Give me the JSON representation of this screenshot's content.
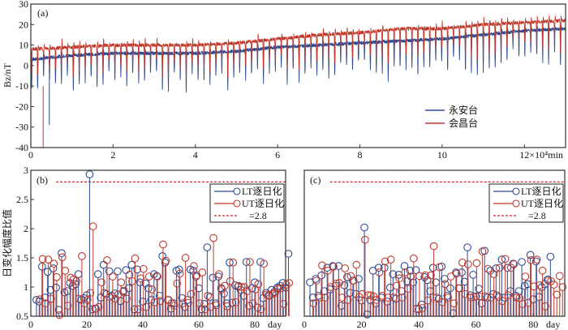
{
  "colors": {
    "blue": "#2b4a92",
    "red": "#c0392b",
    "dashed": "#e02020",
    "axis": "#333333"
  },
  "chart_data": [
    {
      "panel": "a",
      "type": "line",
      "panel_label": "(a)",
      "title": "",
      "xlabel": "×10⁴min",
      "ylabel": "Bz/nT",
      "xlim": [
        0,
        13
      ],
      "ylim": [
        -40,
        30
      ],
      "xticks": [
        0,
        2,
        4,
        6,
        8,
        10,
        12
      ],
      "xtick_labels": [
        "0",
        "2",
        "4",
        "6",
        "8",
        "10",
        "12×10⁴min"
      ],
      "yticks": [
        -40,
        -30,
        -20,
        -10,
        0,
        10,
        20,
        30
      ],
      "ytick_labels": [
        "-40",
        "-30",
        "-20",
        "-10",
        "0",
        "10",
        "20",
        "30"
      ],
      "legend_placement": "lower-right",
      "description": "Daily-varying Bz time series with ~90 daily dips; baseline trends upward from ~3 nT to ~20 nT.",
      "series": [
        {
          "name": "永安台",
          "color_key": "blue",
          "baseline_x": [
            0,
            1,
            2,
            3,
            4,
            5,
            6,
            7,
            8,
            9,
            10,
            11,
            12,
            13
          ],
          "baseline_y": [
            3,
            5,
            6,
            6,
            6,
            7,
            9,
            10,
            11,
            12,
            13,
            15,
            17,
            18
          ],
          "typical_dip_depth": 14,
          "min_value": -29
        },
        {
          "name": "会昌台",
          "color_key": "red",
          "baseline_x": [
            0,
            1,
            2,
            3,
            4,
            5,
            6,
            7,
            8,
            9,
            10,
            11,
            12,
            13
          ],
          "baseline_y": [
            8,
            9,
            10,
            10,
            10,
            11,
            13,
            15,
            16,
            18,
            18,
            20,
            21,
            22
          ],
          "typical_dip_depth": 12,
          "min_value": -40
        }
      ]
    },
    {
      "panel": "b",
      "type": "scatter",
      "subtype": "stem",
      "panel_label": "(b)",
      "xlabel": "day",
      "ylabel": "日变化幅度比值",
      "xlim": [
        0,
        91
      ],
      "ylim": [
        0.5,
        3
      ],
      "xticks": [
        0,
        20,
        40,
        60,
        80
      ],
      "xtick_labels": [
        "0",
        "20",
        "40",
        "60",
        "80"
      ],
      "yticks": [
        0.5,
        1,
        1.5,
        2,
        2.5,
        3
      ],
      "ytick_labels": [
        "0.5",
        "1",
        "1.5",
        "2",
        "2.5",
        "3"
      ],
      "threshold": 2.8,
      "legend_placement": "top-right",
      "legend": [
        "LT逐日化",
        "UT逐日化",
        "=2.8"
      ],
      "series": [
        {
          "name": "LT逐日化",
          "color_key": "blue",
          "values": [
            0.78,
            0.75,
            1.35,
            0.82,
            1.26,
            0.95,
            1.32,
            0.99,
            0.61,
            1.58,
            0.91,
            0.93,
            1.07,
            1.02,
            1.05,
            1.22,
            0.78,
            0.81,
            0.86,
            2.93,
            0.62,
            0.63,
            1.22,
            0.82,
            1.38,
            0.88,
            1.27,
            0.85,
            0.89,
            1.27,
            0.76,
            0.92,
            1.29,
            0.98,
            1.38,
            0.62,
            1.3,
            1.08,
            0.75,
            1.06,
            0.98,
            0.78,
            1.22,
            1.19,
            0.85,
            1.53,
            1.42,
            0.78,
            0.63,
            0.72,
            1.28,
            1.3,
            0.81,
            0.66,
            0.78,
            1.3,
            1.28,
            1.18,
            0.98,
            0.62,
            0.71,
            1.68,
            0.83,
            1.16,
            0.72,
            1.18,
            0.98,
            0.89,
            0.72,
            1.42,
            0.73,
            1.03,
            1.01,
            0.95,
            0.85,
            1.43,
            0.68,
            0.98,
            1.08,
            0.65,
            1.43,
            0.81,
            0.9,
            0.86,
            0.95,
            0.92,
            0.99,
            1.02,
            1.07,
            0.99,
            1.57
          ],
          "x_start": 2
        },
        {
          "name": "UT逐日化",
          "color_key": "red",
          "values": [
            0.79,
            1.48,
            0.72,
            1.47,
            0.8,
            1.4,
            1.17,
            0.52,
            1.51,
            1.28,
            0.68,
            1.16,
            1.13,
            1.1,
            0.8,
            1.53,
            0.72,
            0.78,
            0.9,
            2.04,
            0.63,
            0.66,
            1.08,
            0.9,
            1.46,
            0.83,
            1.18,
            0.8,
            0.87,
            1.08,
            0.94,
            0.8,
            1.21,
            1.1,
            1.49,
            0.62,
            1.15,
            1.31,
            0.66,
            1.18,
            0.96,
            0.74,
            1.18,
            0.76,
            1.73,
            1.45,
            0.78,
            0.72,
            0.68,
            1.06,
            1.23,
            0.72,
            1.5,
            0.73,
            0.88,
            1.36,
            1.2,
            0.72,
            1.25,
            0.62,
            0.85,
            0.66,
            1.84,
            0.69,
            1.22,
            0.96,
            1.02,
            0.67,
            1.1,
            1.42,
            0.74,
            1.02,
            1.0,
            1.0,
            0.93,
            1.43,
            0.72,
            0.96,
            1.05,
            0.62,
            1.4,
            0.87,
            0.85,
            0.88,
            0.9,
            0.97,
            0.98,
            0.71,
            1.04,
            1.07
          ],
          "x_start": 3
        }
      ]
    },
    {
      "panel": "c",
      "type": "scatter",
      "subtype": "stem",
      "panel_label": "(c)",
      "xlabel": "day",
      "ylabel": "",
      "xlim": [
        0,
        91
      ],
      "ylim": [
        0.5,
        3
      ],
      "xticks": [
        0,
        20,
        40,
        60,
        80
      ],
      "xtick_labels": [
        "0",
        "20",
        "40",
        "60",
        "80"
      ],
      "yticks": [
        0.5,
        1,
        1.5,
        2,
        2.5,
        3
      ],
      "threshold": 2.8,
      "legend_placement": "top-right",
      "legend": [
        "LT逐日化",
        "UT逐日化",
        "=2.8"
      ],
      "series": [
        {
          "name": "LT逐日化",
          "color_key": "blue",
          "values": [
            1.08,
            0.82,
            1.14,
            0.85,
            1.2,
            0.93,
            1.33,
            0.96,
            1.36,
            1.02,
            1.36,
            0.68,
            1.03,
            1.17,
            0.9,
            1.11,
            0.88,
            1.14,
            0.77,
            2.02,
            0.53,
            0.78,
            1.28,
            0.72,
            1.33,
            0.82,
            1.33,
            0.75,
            0.99,
            1.22,
            0.8,
            1.21,
            0.93,
            1.36,
            1.1,
            1.28,
            1.08,
            1.29,
            0.62,
            0.7,
            1.17,
            1.12,
            0.93,
            1.33,
            1.08,
            0.8,
            1.35,
            1.14,
            0.85,
            0.98,
            0.55,
            1.25,
            0.98,
            1.25,
            1.09,
            1.68,
            0.86,
            1.21,
            0.84,
            0.97,
            0.72,
            1.62,
            0.82,
            1.28,
            0.88,
            1.32,
            0.83,
            1.47,
            0.82,
            1.33,
            0.93,
            1.4,
            0.85,
            0.93,
            1.43,
            1.02,
            1.05,
            1.55,
            0.79,
            1.44,
            0.83,
            1.0,
            1.05,
            1.13,
            1.52
          ],
          "x_start": 2
        },
        {
          "name": "UT逐日化",
          "color_key": "red",
          "values": [
            0.72,
            1.11,
            0.82,
            1.37,
            0.82,
            1.28,
            1.0,
            1.35,
            1.06,
            1.07,
            0.82,
            1.32,
            0.78,
            1.19,
            1.11,
            1.38,
            0.83,
            0.88,
            1.81,
            0.86,
            0.86,
            0.84,
            0.78,
            1.25,
            0.85,
            1.44,
            0.82,
            1.47,
            0.82,
            1.02,
            1.15,
            0.82,
            1.25,
            0.97,
            1.18,
            1.49,
            0.63,
            1.19,
            0.64,
            1.2,
            0.77,
            1.2,
            1.7,
            0.82,
            1.34,
            0.74,
            1.05,
            0.82,
            1.18,
            0.72,
            1.23,
            0.98,
            1.42,
            0.88,
            1.39,
            0.82,
            0.83,
            1.41,
            0.84,
            1.61,
            0.84,
            1.31,
            0.82,
            1.22,
            0.86,
            1.33,
            0.76,
            1.48,
            0.86,
            1.33,
            1.39,
            0.82,
            0.81,
            0.71,
            1.18,
            0.73,
            1.46,
            1.01,
            1.47,
            1.03,
            1.28,
            0.67,
            1.11,
            1.1,
            1.04,
            0.87,
            1.19,
            1.0
          ],
          "x_start": 3
        }
      ]
    }
  ]
}
